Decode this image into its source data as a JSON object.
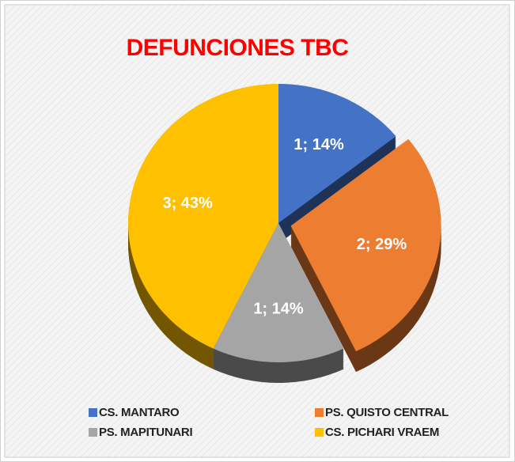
{
  "chart_data": {
    "type": "pie",
    "title": "DEFUNCIONES  TBC",
    "categories": [
      "CS. MANTARO",
      "PS. QUISTO CENTRAL",
      "PS. MAPITUNARI",
      "CS. PICHARI VRAEM"
    ],
    "values": [
      1,
      2,
      1,
      3
    ],
    "value_labels": [
      "1; 14%",
      "2; 29%",
      "1; 14%",
      "3; 43%"
    ],
    "colors": [
      "#4472c4",
      "#ed7d31",
      "#a5a5a5",
      "#ffc000"
    ],
    "legend": "bottom"
  }
}
